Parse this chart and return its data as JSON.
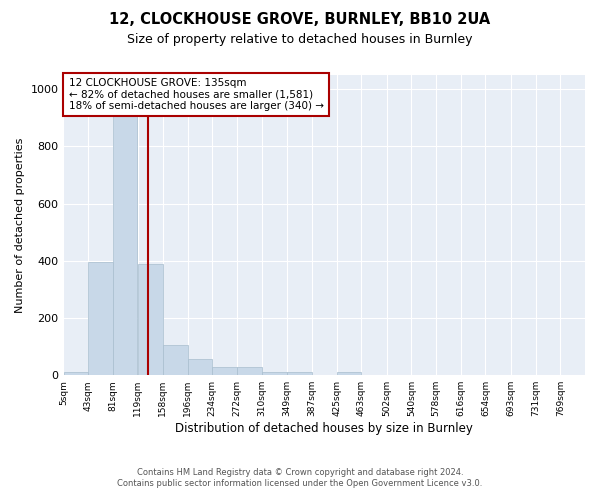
{
  "title": "12, CLOCKHOUSE GROVE, BURNLEY, BB10 2UA",
  "subtitle": "Size of property relative to detached houses in Burnley",
  "xlabel": "Distribution of detached houses by size in Burnley",
  "ylabel": "Number of detached properties",
  "annotation_line1": "12 CLOCKHOUSE GROVE: 135sqm",
  "annotation_line2": "← 82% of detached houses are smaller (1,581)",
  "annotation_line3": "18% of semi-detached houses are larger (340) →",
  "property_size": 135,
  "bar_color": "#c8d8e8",
  "bar_edge_color": "#a8bece",
  "vline_color": "#aa0000",
  "annotation_box_color": "#aa0000",
  "background_color": "#ffffff",
  "plot_bg_color": "#e8eef6",
  "grid_color": "#ffffff",
  "footer_line1": "Contains HM Land Registry data © Crown copyright and database right 2024.",
  "footer_line2": "Contains public sector information licensed under the Open Government Licence v3.0.",
  "categories": [
    "5sqm",
    "43sqm",
    "81sqm",
    "119sqm",
    "158sqm",
    "196sqm",
    "234sqm",
    "272sqm",
    "310sqm",
    "349sqm",
    "387sqm",
    "425sqm",
    "463sqm",
    "502sqm",
    "540sqm",
    "578sqm",
    "616sqm",
    "654sqm",
    "693sqm",
    "731sqm",
    "769sqm"
  ],
  "bin_edges": [
    5,
    43,
    81,
    119,
    158,
    196,
    234,
    272,
    310,
    349,
    387,
    425,
    463,
    502,
    540,
    578,
    616,
    654,
    693,
    731,
    769,
    807
  ],
  "values": [
    10,
    395,
    950,
    390,
    105,
    55,
    28,
    28,
    12,
    10,
    0,
    12,
    0,
    0,
    0,
    0,
    0,
    0,
    0,
    0,
    0
  ],
  "ylim": [
    0,
    1050
  ],
  "yticks": [
    0,
    200,
    400,
    600,
    800,
    1000
  ]
}
